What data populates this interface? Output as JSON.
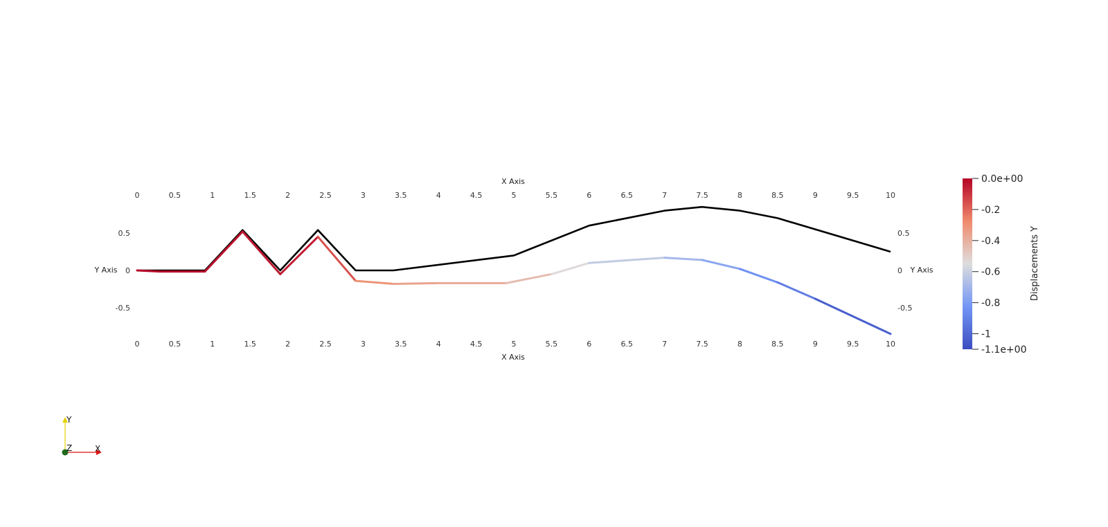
{
  "axes": {
    "x_label": "X Axis",
    "y_label": "Y Axis",
    "x_ticks": [
      "0",
      "0.5",
      "1",
      "1.5",
      "2",
      "2.5",
      "3",
      "3.5",
      "4",
      "4.5",
      "5",
      "5.5",
      "6",
      "6.5",
      "7",
      "7.5",
      "8",
      "8.5",
      "9",
      "9.5",
      "10"
    ],
    "y_ticks": [
      "0.5",
      "0",
      "-0.5"
    ]
  },
  "colorbar": {
    "title": "Displacements Y",
    "labels": [
      "0.0e+00",
      "-0.2",
      "-0.4",
      "-0.6",
      "-0.8",
      "-1",
      "-1.1e+00"
    ],
    "colors": [
      "#b40426",
      "#f08a6c",
      "#dddddd",
      "#7396f5",
      "#3b4cc0"
    ]
  },
  "orientation": {
    "x": "X",
    "y": "Y",
    "z": "Z"
  },
  "chart_data": {
    "type": "line",
    "x_range": [
      0,
      10
    ],
    "y_range": [
      -0.85,
      0.85
    ],
    "series": [
      {
        "style": "black",
        "x": [
          0,
          0.9,
          1.4,
          1.9,
          2.4,
          2.9,
          3.4,
          5,
          6,
          7,
          7.5,
          8,
          8.5,
          10
        ],
        "y": [
          0,
          0,
          0.54,
          0,
          0.54,
          0,
          0,
          0.2,
          0.6,
          0.8,
          0.85,
          0.8,
          0.7,
          0.25
        ]
      },
      {
        "style": "colormap",
        "x": [
          0,
          0.3,
          0.9,
          1.4,
          1.9,
          2.4,
          2.9,
          3.4,
          4,
          4.5,
          4.9,
          5.5,
          6,
          7,
          7.5,
          8,
          8.5,
          9,
          10
        ],
        "y": [
          0,
          -0.015,
          -0.015,
          0.52,
          -0.05,
          0.45,
          -0.14,
          -0.18,
          -0.17,
          -0.17,
          -0.17,
          -0.05,
          0.1,
          0.17,
          0.14,
          0.02,
          -0.16,
          -0.38,
          -0.85
        ],
        "scalar": [
          0,
          -0.015,
          -0.015,
          -0.05,
          -0.04,
          -0.06,
          -0.26,
          -0.34,
          -0.37,
          -0.38,
          -0.38,
          -0.5,
          -0.58,
          -0.66,
          -0.73,
          -0.8,
          -0.88,
          -0.96,
          -1.1
        ]
      }
    ]
  }
}
